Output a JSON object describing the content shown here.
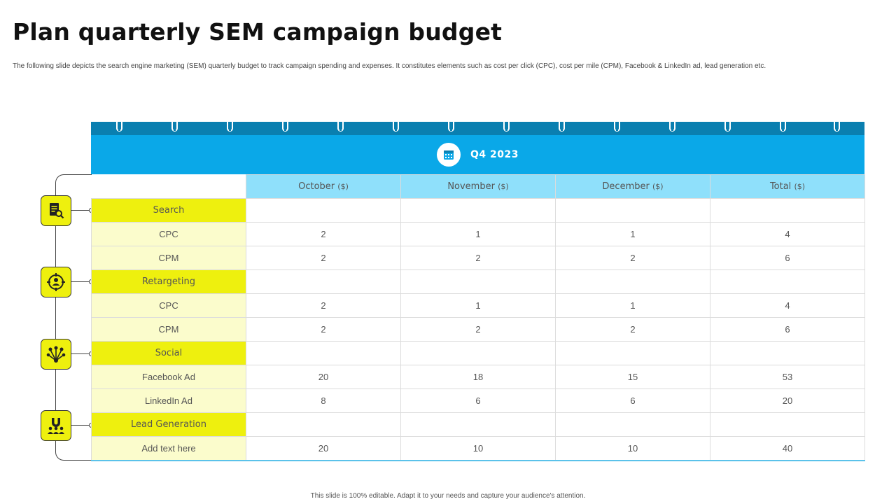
{
  "slide": {
    "title": "Plan quarterly SEM campaign budget",
    "subtitle": "The following slide depicts the search engine marketing (SEM) quarterly budget to track campaign spending and expenses. It constitutes elements such as cost per click (CPC),  cost per mile  (CPM),  Facebook & LinkedIn ad, lead generation etc.",
    "footer": "This slide is 100% editable.  Adapt it to your needs and capture your audience's attention."
  },
  "calendar": {
    "quarter": "Q4 2023",
    "icon": "calendar-icon",
    "header_color": "#0aa8e8",
    "ring_bar_color": "#0a7fb0"
  },
  "table": {
    "columns": [
      {
        "label": "October",
        "unit": "($)"
      },
      {
        "label": "November",
        "unit": "($)"
      },
      {
        "label": "December",
        "unit": "($)"
      },
      {
        "label": "Total",
        "unit": "($)"
      }
    ],
    "groups": [
      {
        "category": "Search",
        "icon": "search-document-icon",
        "rows": [
          {
            "label": "CPC",
            "values": [
              "2",
              "1",
              "1",
              "4"
            ]
          },
          {
            "label": "CPM",
            "values": [
              "2",
              "2",
              "2",
              "6"
            ]
          }
        ]
      },
      {
        "category": "Retargeting",
        "icon": "target-user-icon",
        "rows": [
          {
            "label": "CPC",
            "values": [
              "2",
              "1",
              "1",
              "4"
            ]
          },
          {
            "label": "CPM",
            "values": [
              "2",
              "2",
              "2",
              "6"
            ]
          }
        ]
      },
      {
        "category": "Social",
        "icon": "network-icon",
        "rows": [
          {
            "label": "Facebook Ad",
            "values": [
              "20",
              "18",
              "15",
              "53"
            ]
          },
          {
            "label": "LinkedIn  Ad",
            "values": [
              "8",
              "6",
              "6",
              "20"
            ]
          }
        ]
      },
      {
        "category": "Lead Generation",
        "icon": "magnet-people-icon",
        "rows": [
          {
            "label": "Add text here",
            "values": [
              "20",
              "10",
              "10",
              "40"
            ]
          }
        ]
      }
    ],
    "colors": {
      "category_bg": "#eef00e",
      "item_bg": "#fbfccc",
      "header_bg": "#8fe0fb"
    }
  }
}
